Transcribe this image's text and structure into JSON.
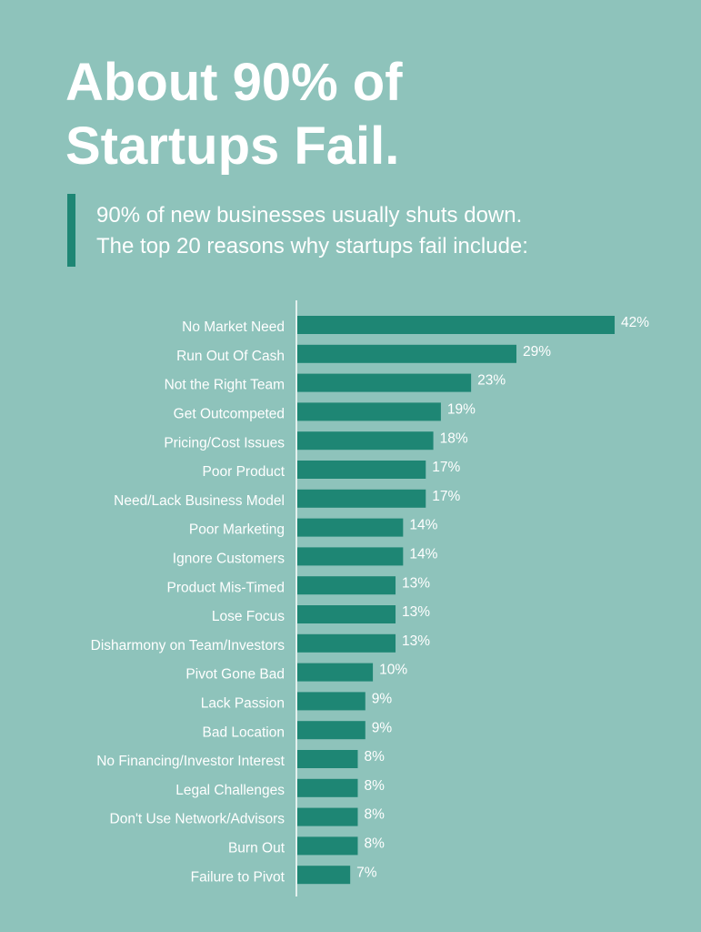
{
  "chart_data": {
    "type": "hbar",
    "title": "About 90% of Startups Fail.",
    "subtitle": [
      "90% of new businesses usually shuts down.",
      "The top 20 reasons why startups fail include:"
    ],
    "categories": [
      "No Market Need",
      "Run Out Of Cash",
      "Not the Right Team",
      "Get Outcompeted",
      "Pricing/Cost Issues",
      "Poor Product",
      "Need/Lack Business Model",
      "Poor Marketing",
      "Ignore Customers",
      "Product Mis-Timed",
      "Lose Focus",
      "Disharmony on Team/Investors",
      "Pivot Gone Bad",
      "Lack Passion",
      "Bad Location",
      "No Financing/Investor Interest",
      "Legal Challenges",
      "Don't Use Network/Advisors",
      "Burn Out",
      "Failure to Pivot"
    ],
    "values": [
      42,
      29,
      23,
      19,
      18,
      17,
      17,
      14,
      14,
      13,
      13,
      13,
      10,
      9,
      9,
      8,
      8,
      8,
      8,
      7
    ],
    "value_labels": [
      "42%",
      "29%",
      "23%",
      "19%",
      "18%",
      "17%",
      "17%",
      "14%",
      "14%",
      "13%",
      "13%",
      "13%",
      "10%",
      "9%",
      "9%",
      "8%",
      "8%",
      "8%",
      "8%",
      "7%"
    ],
    "color": "#1e8674"
  }
}
